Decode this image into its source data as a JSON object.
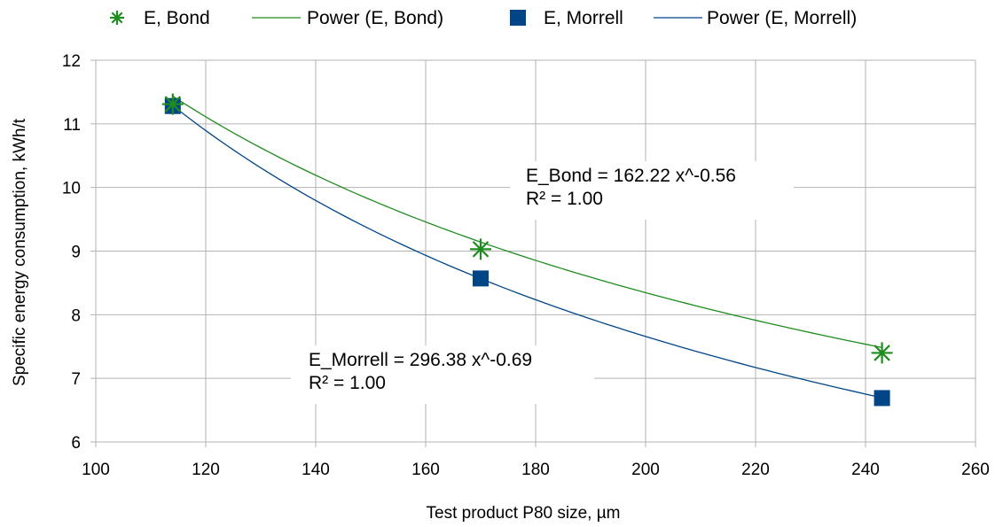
{
  "chart_data": {
    "type": "scatter",
    "title": "",
    "xlabel": "Test product P80 size, µm",
    "ylabel": "Specific energy consumption, kWh/t",
    "xlim": [
      100,
      260
    ],
    "ylim": [
      6,
      12
    ],
    "xticks": [
      100,
      120,
      140,
      160,
      180,
      200,
      220,
      240,
      260
    ],
    "yticks": [
      6,
      7,
      8,
      9,
      10,
      11,
      12
    ],
    "grid": true,
    "legend_position": "top",
    "legend": [
      "E, Bond",
      "Power (E, Bond)",
      "E, Morrell",
      "Power (E, Morrell)"
    ],
    "series": [
      {
        "name": "E, Bond",
        "marker": "asterisk",
        "color": "#1e8c1e",
        "x": [
          114,
          170,
          243
        ],
        "y": [
          11.31,
          9.03,
          7.4
        ],
        "trend": {
          "name": "Power (E, Bond)",
          "a": 162.22,
          "b": -0.56,
          "equation": "E_Bond = 162.22 x^-0.56",
          "r2": "R² = 1.00"
        }
      },
      {
        "name": "E, Morrell",
        "marker": "square",
        "color": "#004586",
        "x": [
          114,
          170,
          243
        ],
        "y": [
          11.28,
          8.57,
          6.69
        ],
        "trend": {
          "name": "Power (E, Morrell)",
          "a": 296.38,
          "b": -0.69,
          "equation": "E_Morrell = 296.38 x^-0.69",
          "r2": "R² = 1.00"
        }
      }
    ]
  }
}
